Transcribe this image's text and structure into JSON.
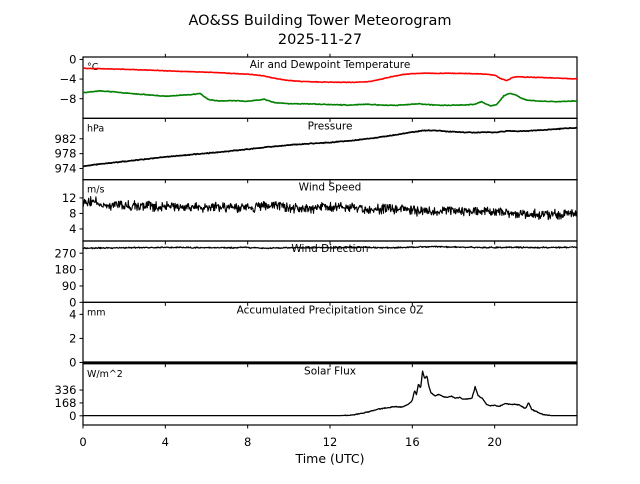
{
  "header": {
    "title": "AO&SS Building Tower Meteorogram",
    "date": "2025-11-27"
  },
  "xaxis": {
    "label": "Time (UTC)",
    "range": [
      0,
      24
    ],
    "tick_values": [
      0,
      4,
      8,
      12,
      16,
      20
    ],
    "tick_labels": [
      "0",
      "4",
      "8",
      "12",
      "16",
      "20"
    ]
  },
  "colors": {
    "temperature": "#ff0000",
    "dewpoint": "#008000",
    "default_line": "#000000",
    "background": "#ffffff",
    "axis": "#000000"
  },
  "chart_data": [
    {
      "type": "line",
      "title": "Air and Dewpoint Temperature",
      "unit": "°C",
      "ylim": [
        -12.0,
        0.5
      ],
      "ytick_values": [
        0,
        -4,
        -8
      ],
      "ytick_labels": [
        "0",
        "−4",
        "−8"
      ],
      "grid": false,
      "series": [
        {
          "name": "air-temperature",
          "color": "#ff0000",
          "width": 1.6,
          "noise": 0.07,
          "step": 0.04,
          "points": [
            [
              0,
              -1.8
            ],
            [
              1,
              -1.9
            ],
            [
              2,
              -2.0
            ],
            [
              3,
              -2.15
            ],
            [
              4,
              -2.3
            ],
            [
              5,
              -2.45
            ],
            [
              6,
              -2.6
            ],
            [
              7,
              -2.8
            ],
            [
              8,
              -3.0
            ],
            [
              8.7,
              -3.3
            ],
            [
              9.4,
              -3.9
            ],
            [
              10,
              -4.3
            ],
            [
              10.7,
              -4.5
            ],
            [
              11.5,
              -4.6
            ],
            [
              12.5,
              -4.65
            ],
            [
              13.3,
              -4.65
            ],
            [
              13.9,
              -4.5
            ],
            [
              14.4,
              -4.1
            ],
            [
              15,
              -3.5
            ],
            [
              15.6,
              -3.05
            ],
            [
              16,
              -2.9
            ],
            [
              16.6,
              -2.8
            ],
            [
              17.2,
              -2.85
            ],
            [
              17.8,
              -2.8
            ],
            [
              18.4,
              -2.85
            ],
            [
              19,
              -2.9
            ],
            [
              19.6,
              -3.0
            ],
            [
              20,
              -3.2
            ],
            [
              20.35,
              -4.0
            ],
            [
              20.6,
              -4.3
            ],
            [
              20.85,
              -3.7
            ],
            [
              21.1,
              -3.5
            ],
            [
              21.5,
              -3.6
            ],
            [
              22,
              -3.65
            ],
            [
              22.7,
              -3.75
            ],
            [
              23.4,
              -3.85
            ],
            [
              24,
              -4.0
            ]
          ]
        },
        {
          "name": "dewpoint-temperature",
          "color": "#008000",
          "width": 1.6,
          "noise": 0.09,
          "step": 0.04,
          "points": [
            [
              0,
              -6.8
            ],
            [
              0.8,
              -6.4
            ],
            [
              1.5,
              -6.6
            ],
            [
              2.2,
              -6.9
            ],
            [
              3,
              -7.15
            ],
            [
              4,
              -7.5
            ],
            [
              4.8,
              -7.3
            ],
            [
              5.3,
              -7.15
            ],
            [
              5.7,
              -6.95
            ],
            [
              6.1,
              -8.2
            ],
            [
              6.6,
              -8.45
            ],
            [
              7.4,
              -8.4
            ],
            [
              8,
              -8.55
            ],
            [
              8.8,
              -8.1
            ],
            [
              9.3,
              -8.8
            ],
            [
              10,
              -9.0
            ],
            [
              11,
              -9.05
            ],
            [
              12,
              -9.2
            ],
            [
              13,
              -9.3
            ],
            [
              13.8,
              -9.1
            ],
            [
              14.4,
              -9.3
            ],
            [
              15.2,
              -9.35
            ],
            [
              16.3,
              -9.05
            ],
            [
              16.8,
              -9.2
            ],
            [
              17.5,
              -9.35
            ],
            [
              18.3,
              -9.3
            ],
            [
              19,
              -9.15
            ],
            [
              19.35,
              -8.6
            ],
            [
              19.8,
              -9.45
            ],
            [
              20.1,
              -9.2
            ],
            [
              20.45,
              -7.4
            ],
            [
              20.7,
              -6.95
            ],
            [
              21,
              -7.15
            ],
            [
              21.3,
              -7.9
            ],
            [
              21.6,
              -8.3
            ],
            [
              22.2,
              -8.5
            ],
            [
              23,
              -8.6
            ],
            [
              24,
              -8.45
            ]
          ]
        }
      ]
    },
    {
      "type": "line",
      "title": "Pressure",
      "unit": "hPa",
      "ylim": [
        971.0,
        987.5
      ],
      "ytick_values": [
        982,
        978,
        974
      ],
      "ytick_labels": [
        "982",
        "978",
        "974"
      ],
      "grid": false,
      "series": [
        {
          "name": "pressure",
          "color": "#000000",
          "width": 1.7,
          "noise": 0.13,
          "step": 0.04,
          "points": [
            [
              0,
              974.6
            ],
            [
              1,
              975.3
            ],
            [
              2,
              975.9
            ],
            [
              3,
              976.5
            ],
            [
              4,
              977.1
            ],
            [
              5,
              977.6
            ],
            [
              6,
              978.1
            ],
            [
              7,
              978.6
            ],
            [
              8,
              979.2
            ],
            [
              9,
              979.8
            ],
            [
              10,
              980.3
            ],
            [
              11,
              980.7
            ],
            [
              12,
              981.0
            ],
            [
              13,
              981.5
            ],
            [
              14,
              982.1
            ],
            [
              15,
              982.9
            ],
            [
              15.8,
              983.6
            ],
            [
              16.5,
              984.2
            ],
            [
              17,
              984.3
            ],
            [
              17.6,
              984.0
            ],
            [
              18.3,
              983.8
            ],
            [
              19,
              983.7
            ],
            [
              19.6,
              983.8
            ],
            [
              20,
              983.7
            ],
            [
              20.6,
              984.1
            ],
            [
              21.2,
              984.0
            ],
            [
              21.8,
              984.2
            ],
            [
              22.4,
              984.4
            ],
            [
              23.2,
              984.7
            ],
            [
              24,
              985.0
            ]
          ]
        }
      ]
    },
    {
      "type": "line",
      "title": "Wind Speed",
      "unit": "m/s",
      "ylim": [
        0.9,
        16.7
      ],
      "ytick_values": [
        12,
        8,
        4
      ],
      "ytick_labels": [
        "12",
        "8",
        "4"
      ],
      "grid": false,
      "series": [
        {
          "name": "wind-speed",
          "color": "#000000",
          "width": 1.1,
          "noise": 1.55,
          "step": 0.025,
          "points": [
            [
              0,
              10.5
            ],
            [
              0.5,
              11.0
            ],
            [
              1,
              10.2
            ],
            [
              2,
              9.9
            ],
            [
              3,
              10.0
            ],
            [
              4,
              9.8
            ],
            [
              5,
              9.7
            ],
            [
              6,
              9.4
            ],
            [
              7,
              9.7
            ],
            [
              8,
              9.5
            ],
            [
              9,
              9.9
            ],
            [
              10,
              9.6
            ],
            [
              11,
              9.3
            ],
            [
              12,
              9.9
            ],
            [
              13,
              9.4
            ],
            [
              14,
              9.0
            ],
            [
              15,
              9.3
            ],
            [
              16,
              8.8
            ],
            [
              17,
              8.5
            ],
            [
              18,
              8.8
            ],
            [
              19,
              8.3
            ],
            [
              20,
              8.6
            ],
            [
              21,
              8.0
            ],
            [
              22,
              7.8
            ],
            [
              23,
              7.7
            ],
            [
              24,
              7.9
            ]
          ]
        }
      ]
    },
    {
      "type": "line",
      "title": "Wind Direction",
      "unit": "",
      "ylim": [
        0,
        337
      ],
      "ytick_values": [
        270,
        180,
        90,
        0
      ],
      "ytick_labels": [
        "270",
        "180",
        "90",
        "0"
      ],
      "grid": false,
      "series": [
        {
          "name": "wind-direction",
          "color": "#000000",
          "width": 1.2,
          "noise": 4.5,
          "step": 0.025,
          "points": [
            [
              0,
              298
            ],
            [
              2,
              300
            ],
            [
              4,
              302
            ],
            [
              6,
              300
            ],
            [
              8,
              301
            ],
            [
              9,
              297
            ],
            [
              10,
              300
            ],
            [
              12,
              301
            ],
            [
              14,
              302
            ],
            [
              15,
              300
            ],
            [
              16,
              303
            ],
            [
              17,
              306
            ],
            [
              18,
              304
            ],
            [
              19,
              302
            ],
            [
              20,
              301
            ],
            [
              21,
              303
            ],
            [
              22,
              300
            ],
            [
              23,
              302
            ],
            [
              24,
              303
            ]
          ]
        }
      ]
    },
    {
      "type": "line",
      "title": "Accumulated Precipitation Since 0Z",
      "unit": "mm",
      "ylim": [
        -0.1,
        5.0
      ],
      "ytick_values": [
        4,
        2,
        0
      ],
      "ytick_labels": [
        "4",
        "2",
        "0"
      ],
      "grid": false,
      "series": [
        {
          "name": "accumulated-precipitation",
          "color": "#000000",
          "width": 2.2,
          "noise": 0,
          "step": 0.5,
          "points": [
            [
              0,
              0
            ],
            [
              24,
              0
            ]
          ]
        }
      ]
    },
    {
      "type": "line",
      "title": "Solar Flux",
      "unit": "W/m^2",
      "ylim": [
        -120,
        680
      ],
      "ytick_values": [
        336,
        168,
        0
      ],
      "ytick_labels": [
        "336",
        "168",
        "0"
      ],
      "grid": false,
      "series": [
        {
          "name": "solar-flux",
          "color": "#000000",
          "width": 1.3,
          "noise": 7,
          "noise_when_positive": true,
          "step": 0.03,
          "points": [
            [
              0,
              2
            ],
            [
              12.4,
              2
            ],
            [
              12.8,
              5
            ],
            [
              13.2,
              15
            ],
            [
              13.6,
              35
            ],
            [
              14,
              60
            ],
            [
              14.4,
              90
            ],
            [
              14.8,
              105
            ],
            [
              15.2,
              120
            ],
            [
              15.5,
              115
            ],
            [
              15.8,
              150
            ],
            [
              16,
              200
            ],
            [
              16.1,
              330
            ],
            [
              16.2,
              280
            ],
            [
              16.3,
              420
            ],
            [
              16.4,
              360
            ],
            [
              16.5,
              580
            ],
            [
              16.6,
              480
            ],
            [
              16.7,
              530
            ],
            [
              16.8,
              390
            ],
            [
              16.9,
              300
            ],
            [
              17.1,
              260
            ],
            [
              17.3,
              280
            ],
            [
              17.5,
              250
            ],
            [
              17.7,
              240
            ],
            [
              17.9,
              255
            ],
            [
              18.1,
              230
            ],
            [
              18.3,
              240
            ],
            [
              18.5,
              215
            ],
            [
              18.7,
              220
            ],
            [
              18.9,
              230
            ],
            [
              19.05,
              380
            ],
            [
              19.2,
              260
            ],
            [
              19.4,
              230
            ],
            [
              19.6,
              150
            ],
            [
              19.8,
              130
            ],
            [
              20,
              140
            ],
            [
              20.2,
              120
            ],
            [
              20.5,
              160
            ],
            [
              20.7,
              150
            ],
            [
              21,
              150
            ],
            [
              21.2,
              140
            ],
            [
              21.5,
              95
            ],
            [
              21.65,
              170
            ],
            [
              21.8,
              80
            ],
            [
              22,
              60
            ],
            [
              22.2,
              30
            ],
            [
              22.5,
              8
            ],
            [
              22.8,
              2
            ],
            [
              24,
              2
            ]
          ]
        }
      ]
    }
  ]
}
